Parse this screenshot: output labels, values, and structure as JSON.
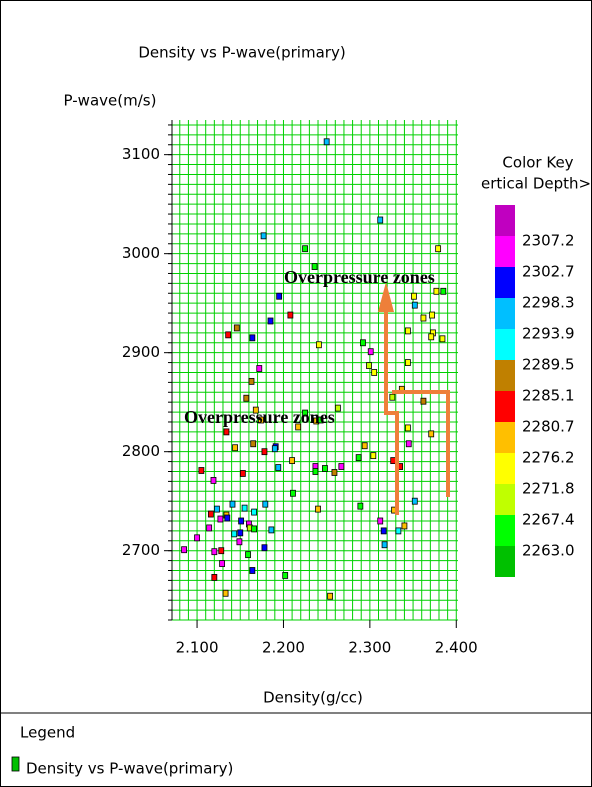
{
  "chart_data": {
    "type": "scatter",
    "title": "Density vs P-wave(primary)",
    "x_label": "Density(g/cc)",
    "y_label": "P-wave(m/s)",
    "xlim": [
      2.071,
      2.402
    ],
    "ylim": [
      2630,
      3135
    ],
    "xticks": [
      {
        "value": 2.1,
        "label": "2.100"
      },
      {
        "value": 2.2,
        "label": "2.200"
      },
      {
        "value": 2.3,
        "label": "2.300"
      },
      {
        "value": 2.4,
        "label": "2.400"
      }
    ],
    "yticks": [
      2700,
      2800,
      2900,
      3000,
      3100
    ],
    "grid": true,
    "grid_color": "#00d000",
    "grid_x_step": 0.01,
    "grid_y_step": 10,
    "annotations": [
      "Overpressure zones",
      "Overpressure zones"
    ],
    "color_key": {
      "title": "Color Key",
      "subtitle": "ertical Depth>(m",
      "colors": [
        "#c000c0",
        "#ff00ff",
        "#0000ff",
        "#00bfff",
        "#00ffff",
        "#c08000",
        "#ff0000",
        "#ffbf00",
        "#ffff00",
        "#c0ff00",
        "#00ff00",
        "#00c000"
      ],
      "labels": [
        "2307.2",
        "2302.7",
        "2298.3",
        "2293.9",
        "2289.5",
        "2285.1",
        "2280.7",
        "2276.2",
        "2271.8",
        "2267.4",
        "2263.0"
      ]
    },
    "legend_title": "Legend",
    "series": [
      {
        "name": "Density vs P-wave(primary)",
        "color": "#00c000",
        "x": [
          2.25,
          2.312,
          2.177,
          2.225,
          2.379,
          2.236,
          2.385,
          2.377,
          2.351,
          2.195,
          2.352,
          2.208,
          2.185,
          2.362,
          2.372,
          2.146,
          2.344,
          2.373,
          2.371,
          2.136,
          2.164,
          2.384,
          2.241,
          2.292,
          2.301,
          2.299,
          2.172,
          2.344,
          2.305,
          2.163,
          2.157,
          2.326,
          2.362,
          2.337,
          2.168,
          2.263,
          2.225,
          2.174,
          2.238,
          2.243,
          2.217,
          2.134,
          2.344,
          2.371,
          2.191,
          2.165,
          2.144,
          2.19,
          2.294,
          2.178,
          2.345,
          2.304,
          2.327,
          2.21,
          2.287,
          2.105,
          2.153,
          2.237,
          2.267,
          2.335,
          2.194,
          2.248,
          2.237,
          2.259,
          2.119,
          2.211,
          2.352,
          2.141,
          2.179,
          2.289,
          2.123,
          2.116,
          2.155,
          2.166,
          2.134,
          2.135,
          2.24,
          2.328,
          2.127,
          2.151,
          2.16,
          2.312,
          2.161,
          2.166,
          2.34,
          2.186,
          2.316,
          2.333,
          2.15,
          2.143,
          2.1,
          2.114,
          2.149,
          2.317,
          2.178,
          2.085,
          2.12,
          2.128,
          2.159,
          2.129,
          2.164,
          2.12,
          2.202,
          2.133,
          2.254
        ],
        "values": [
          3113,
          3034,
          3018,
          3005,
          3005,
          2987,
          2962,
          2962,
          2957,
          2957,
          2948,
          2938,
          2932,
          2935,
          2938,
          2925,
          2922,
          2920,
          2916,
          2918,
          2915,
          2914,
          2908,
          2910,
          2901,
          2887,
          2884,
          2890,
          2880,
          2871,
          2854,
          2855,
          2851,
          2863,
          2842,
          2844,
          2839,
          2832,
          2831,
          2832,
          2825,
          2820,
          2824,
          2818,
          2805,
          2808,
          2804,
          2803,
          2806,
          2800,
          2808,
          2796,
          2791,
          2791,
          2794,
          2781,
          2778,
          2785,
          2785,
          2785,
          2784,
          2783,
          2780,
          2779,
          2771,
          2758,
          2750,
          2747,
          2747,
          2745,
          2742,
          2737,
          2743,
          2739,
          2736,
          2733,
          2742,
          2741,
          2732,
          2730,
          2727,
          2730,
          2723,
          2722,
          2725,
          2721,
          2720,
          2720,
          2718,
          2717,
          2713,
          2723,
          2709,
          2706,
          2703,
          2701,
          2699,
          2700,
          2696,
          2687,
          2680,
          2673,
          2675,
          2657,
          2654
        ],
        "point_colors": [
          "#00bfff",
          "#00bfff",
          "#00bfff",
          "#00ff00",
          "#ffff00",
          "#00ff00",
          "#00ff00",
          "#ffff00",
          "#ffff00",
          "#0000ff",
          "#00bfff",
          "#ff0000",
          "#0000ff",
          "#ffff00",
          "#ffff00",
          "#c08000",
          "#ffff00",
          "#ffff00",
          "#ffff00",
          "#ff0000",
          "#0000ff",
          "#ffff00",
          "#ffff00",
          "#00ff00",
          "#ff00ff",
          "#c0ff00",
          "#ff00ff",
          "#ffff00",
          "#ffff00",
          "#c08000",
          "#c08000",
          "#c0ff00",
          "#c08000",
          "#ffbf00",
          "#ffbf00",
          "#c0ff00",
          "#00ff00",
          "#ffbf00",
          "#ffbf00",
          "#00ff00",
          "#ffbf00",
          "#ff0000",
          "#ffff00",
          "#ffbf00",
          "#0000ff",
          "#c08000",
          "#ffbf00",
          "#00bfff",
          "#ffbf00",
          "#ff0000",
          "#ff00ff",
          "#ffff00",
          "#ff0000",
          "#ffbf00",
          "#00ff00",
          "#ff0000",
          "#ff0000",
          "#ff00ff",
          "#ff00ff",
          "#ff0000",
          "#00bfff",
          "#00ff00",
          "#00ff00",
          "#c08000",
          "#ff00ff",
          "#00ff00",
          "#00bfff",
          "#00bfff",
          "#00bfff",
          "#00ff00",
          "#00bfff",
          "#ff0000",
          "#00ffff",
          "#00ffff",
          "#ffbf00",
          "#0000ff",
          "#ffbf00",
          "#ffbf00",
          "#ff00ff",
          "#0000ff",
          "#ff00ff",
          "#ff00ff",
          "#c0ff00",
          "#00ff00",
          "#ffbf00",
          "#00bfff",
          "#0000ff",
          "#00ffff",
          "#0000ff",
          "#00ffff",
          "#ff00ff",
          "#ff00ff",
          "#ff00ff",
          "#00bfff",
          "#0000ff",
          "#ff00ff",
          "#ff00ff",
          "#ff0000",
          "#00ff00",
          "#ff00ff",
          "#0000ff",
          "#ff0000",
          "#00ff00",
          "#ffbf00",
          "#ffbf00"
        ]
      }
    ]
  }
}
